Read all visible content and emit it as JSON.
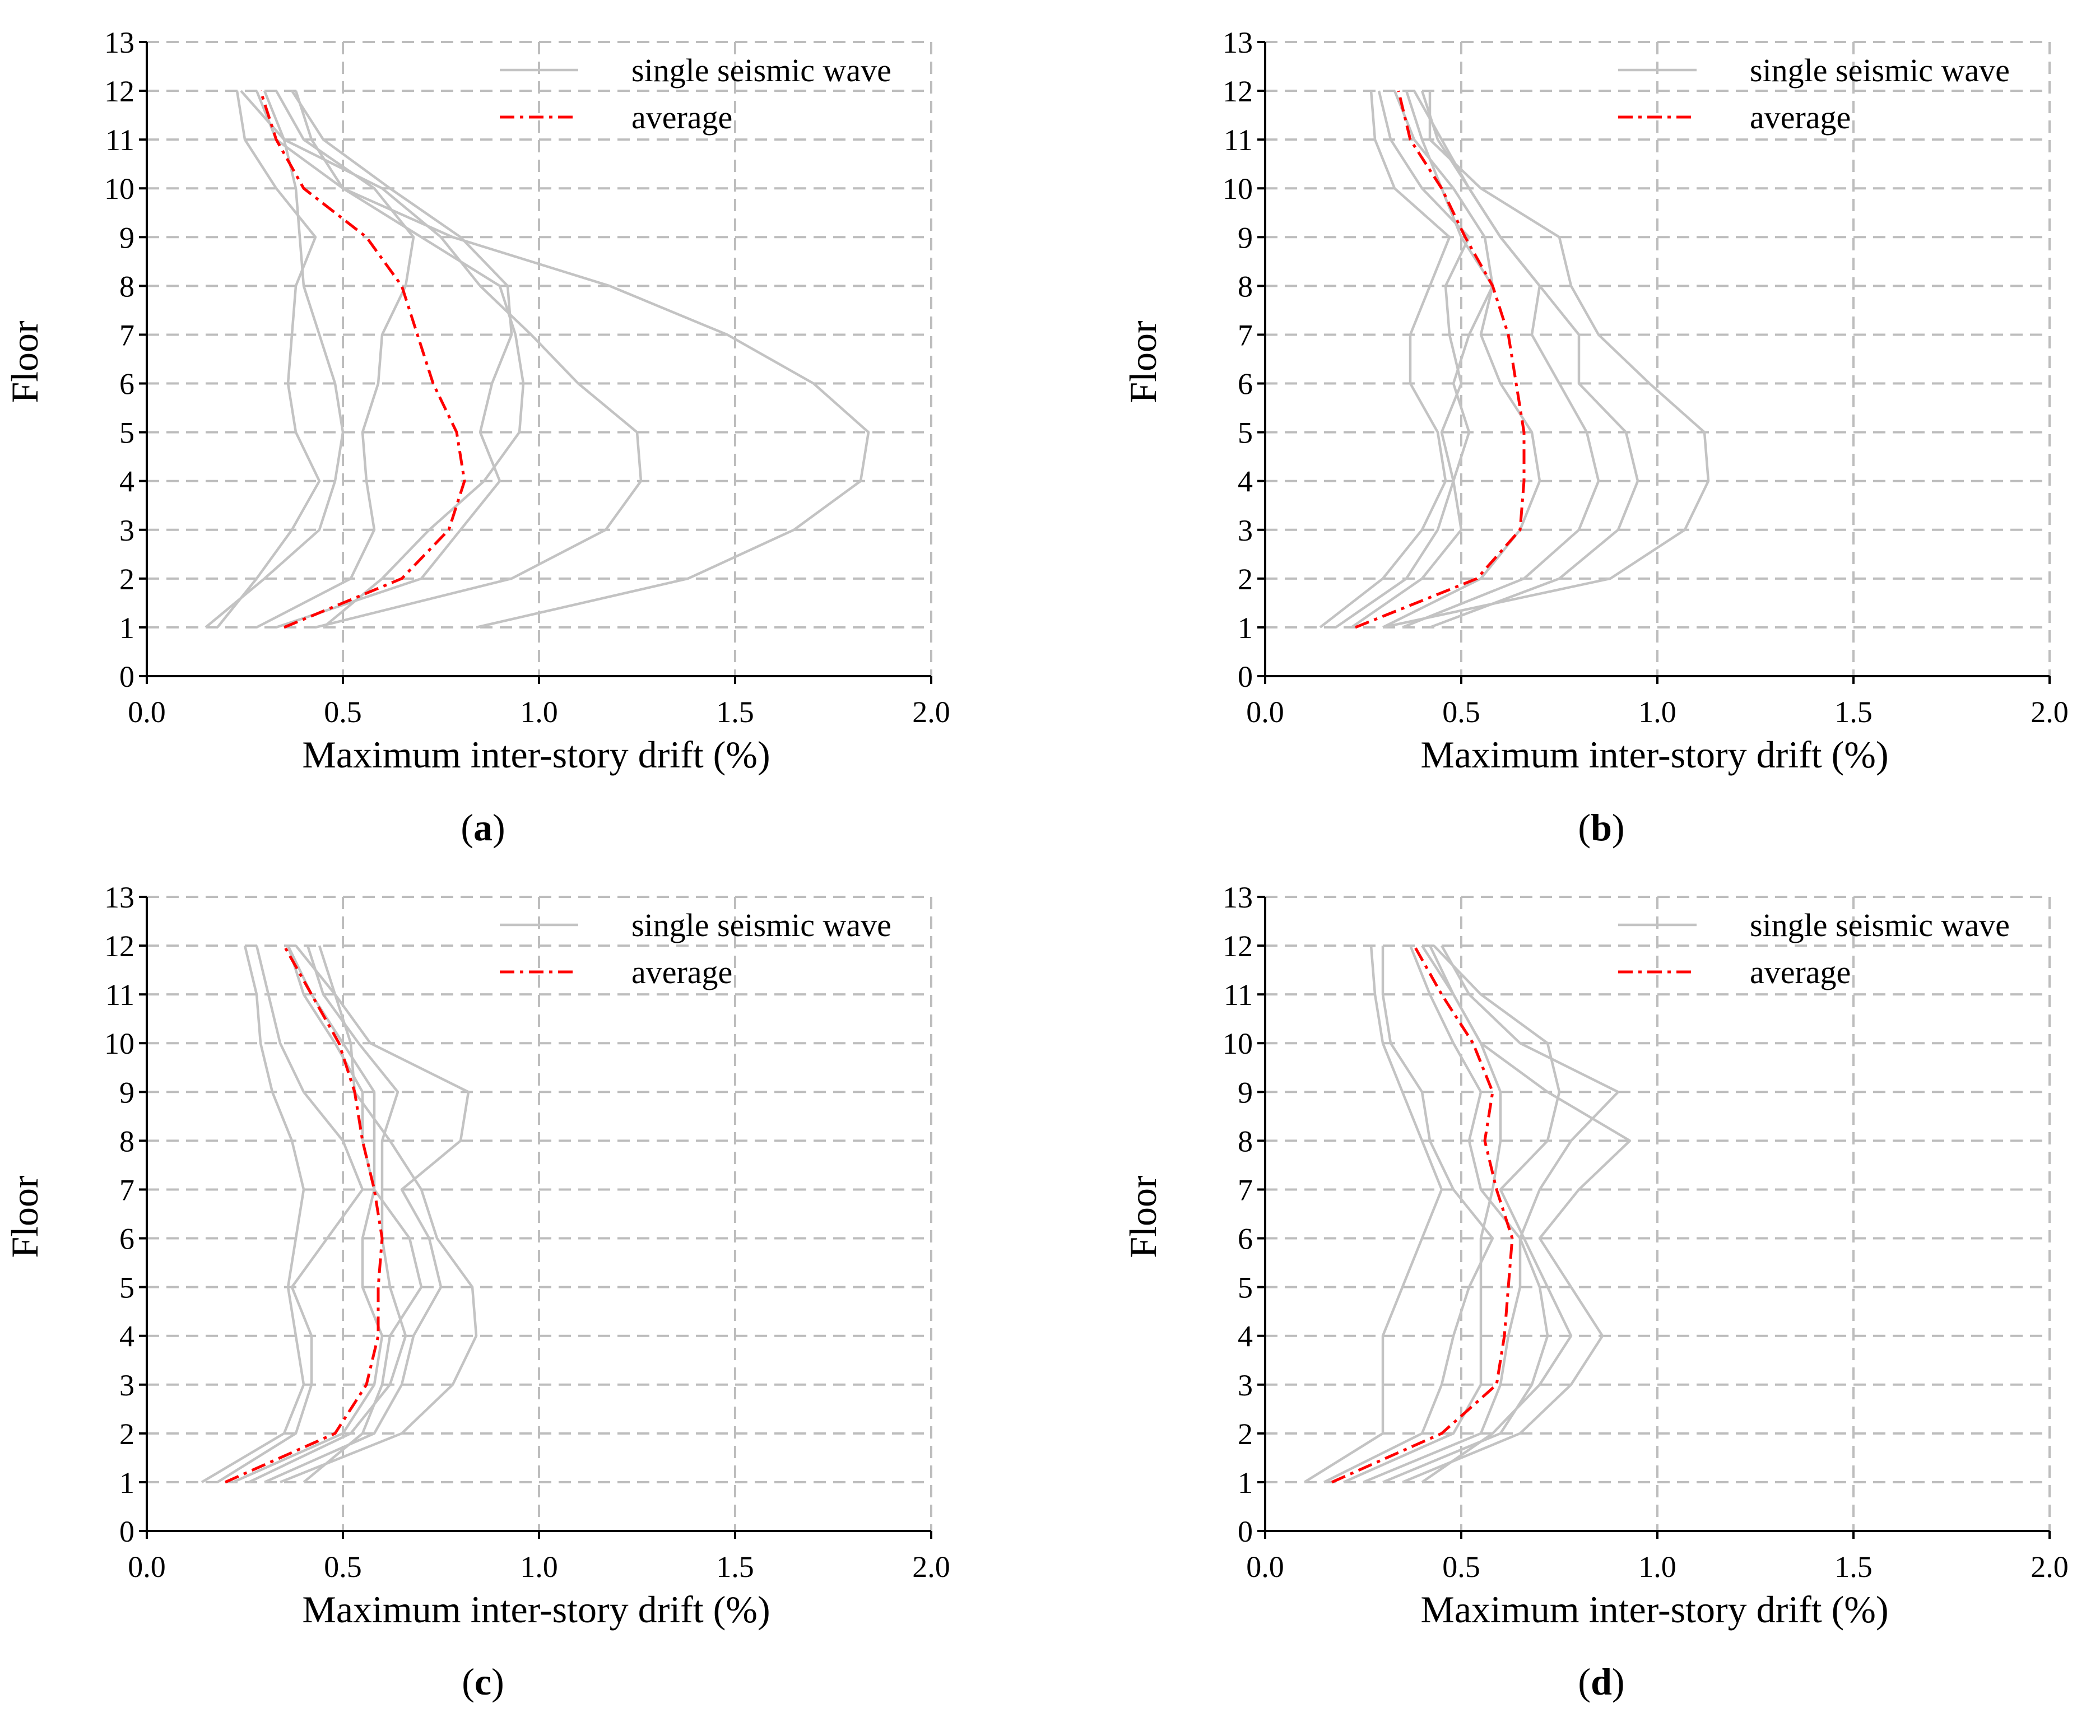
{
  "figure": {
    "style": {
      "wave_color": "#c3c3c3",
      "average_color": "#ff0000",
      "grid_color": "#bdbdbd",
      "axis_color": "#000000"
    }
  },
  "chart_data": [
    {
      "panel": "a",
      "caption_letter": "a",
      "type": "line",
      "xlabel": "Maximum inter-story drift (%)",
      "ylabel": "Floor",
      "xlim": [
        0.0,
        2.0
      ],
      "ylim": [
        0,
        13
      ],
      "xticks": [
        0.0,
        0.5,
        1.0,
        1.5,
        2.0
      ],
      "xtick_labels": [
        "0.0",
        "0.5",
        "1.0",
        "1.5",
        "2.0"
      ],
      "yticks": [
        0,
        1,
        2,
        3,
        4,
        5,
        6,
        7,
        8,
        9,
        10,
        11,
        12,
        13
      ],
      "ytick_labels": [
        "0",
        "1",
        "2",
        "3",
        "4",
        "5",
        "6",
        "7",
        "8",
        "9",
        "10",
        "11",
        "12",
        "13"
      ],
      "legend": {
        "position": "top-right",
        "entries": [
          "single seismic wave",
          "average"
        ]
      },
      "floors": [
        1,
        2,
        3,
        4,
        5,
        6,
        7,
        8,
        9,
        10,
        11,
        12
      ],
      "series": [
        {
          "name": "single seismic wave",
          "values": [
            0.15,
            0.3,
            0.44,
            0.48,
            0.5,
            0.48,
            0.44,
            0.4,
            0.39,
            0.38,
            0.35,
            0.3
          ]
        },
        {
          "name": "single seismic wave",
          "values": [
            0.18,
            0.28,
            0.37,
            0.44,
            0.38,
            0.36,
            0.37,
            0.38,
            0.43,
            0.33,
            0.25,
            0.23
          ]
        },
        {
          "name": "single seismic wave",
          "values": [
            0.28,
            0.52,
            0.58,
            0.56,
            0.55,
            0.59,
            0.6,
            0.66,
            0.68,
            0.58,
            0.4,
            0.33
          ]
        },
        {
          "name": "single seismic wave",
          "values": [
            0.33,
            0.7,
            0.8,
            0.9,
            0.85,
            0.88,
            0.93,
            0.92,
            0.8,
            0.62,
            0.45,
            0.37
          ]
        },
        {
          "name": "single seismic wave",
          "values": [
            0.43,
            0.93,
            1.17,
            1.26,
            1.25,
            1.1,
            0.98,
            0.85,
            0.75,
            0.6,
            0.35,
            0.24
          ]
        },
        {
          "name": "single seismic wave",
          "values": [
            0.84,
            1.38,
            1.65,
            1.82,
            1.84,
            1.7,
            1.48,
            1.18,
            0.78,
            0.5,
            0.33,
            0.28
          ]
        },
        {
          "name": "single seismic wave",
          "values": [
            0.45,
            0.6,
            0.72,
            0.86,
            0.95,
            0.96,
            0.94,
            0.9,
            0.7,
            0.5,
            0.42,
            0.38
          ]
        }
      ],
      "average": {
        "name": "average",
        "values": [
          0.35,
          0.65,
          0.77,
          0.81,
          0.79,
          0.73,
          0.69,
          0.65,
          0.56,
          0.4,
          0.33,
          0.29
        ]
      }
    },
    {
      "panel": "b",
      "caption_letter": "b",
      "type": "line",
      "xlabel": "Maximum inter-story drift (%)",
      "ylabel": "Floor",
      "xlim": [
        0.0,
        2.0
      ],
      "ylim": [
        0,
        13
      ],
      "xticks": [
        0.0,
        0.5,
        1.0,
        1.5,
        2.0
      ],
      "xtick_labels": [
        "0.0",
        "0.5",
        "1.0",
        "1.5",
        "2.0"
      ],
      "yticks": [
        0,
        1,
        2,
        3,
        4,
        5,
        6,
        7,
        8,
        9,
        10,
        11,
        12,
        13
      ],
      "ytick_labels": [
        "0",
        "1",
        "2",
        "3",
        "4",
        "5",
        "6",
        "7",
        "8",
        "9",
        "10",
        "11",
        "12",
        "13"
      ],
      "legend": {
        "position": "top-right",
        "entries": [
          "single seismic wave",
          "average"
        ]
      },
      "floors": [
        1,
        2,
        3,
        4,
        5,
        6,
        7,
        8,
        9,
        10,
        11,
        12
      ],
      "series": [
        {
          "name": "single seismic wave",
          "values": [
            0.14,
            0.3,
            0.4,
            0.46,
            0.44,
            0.37,
            0.37,
            0.42,
            0.47,
            0.33,
            0.28,
            0.27
          ]
        },
        {
          "name": "single seismic wave",
          "values": [
            0.18,
            0.36,
            0.44,
            0.48,
            0.45,
            0.5,
            0.47,
            0.46,
            0.52,
            0.4,
            0.32,
            0.29
          ]
        },
        {
          "name": "single seismic wave",
          "values": [
            0.22,
            0.4,
            0.5,
            0.48,
            0.52,
            0.48,
            0.52,
            0.58,
            0.56,
            0.48,
            0.38,
            0.33
          ]
        },
        {
          "name": "single seismic wave",
          "values": [
            0.3,
            0.55,
            0.65,
            0.7,
            0.68,
            0.6,
            0.55,
            0.58,
            0.5,
            0.45,
            0.4,
            0.36
          ]
        },
        {
          "name": "single seismic wave",
          "values": [
            0.35,
            0.66,
            0.8,
            0.85,
            0.82,
            0.75,
            0.68,
            0.7,
            0.6,
            0.52,
            0.44,
            0.4
          ]
        },
        {
          "name": "single seismic wave",
          "values": [
            0.42,
            0.75,
            0.9,
            0.95,
            0.92,
            0.8,
            0.8,
            0.7,
            0.6,
            0.52,
            0.45,
            0.38
          ]
        },
        {
          "name": "single seismic wave",
          "values": [
            0.3,
            0.88,
            1.07,
            1.13,
            1.12,
            0.98,
            0.85,
            0.78,
            0.75,
            0.55,
            0.42,
            0.42
          ]
        }
      ],
      "average": {
        "name": "average",
        "values": [
          0.23,
          0.54,
          0.65,
          0.66,
          0.66,
          0.64,
          0.62,
          0.58,
          0.51,
          0.45,
          0.37,
          0.34
        ]
      }
    },
    {
      "panel": "c",
      "caption_letter": "c",
      "type": "line",
      "xlabel": "Maximum inter-story drift (%)",
      "ylabel": "Floor",
      "xlim": [
        0.0,
        2.0
      ],
      "ylim": [
        0,
        13
      ],
      "xticks": [
        0.0,
        0.5,
        1.0,
        1.5,
        2.0
      ],
      "xtick_labels": [
        "0.0",
        "0.5",
        "1.0",
        "1.5",
        "2.0"
      ],
      "yticks": [
        0,
        1,
        2,
        3,
        4,
        5,
        6,
        7,
        8,
        9,
        10,
        11,
        12,
        13
      ],
      "ytick_labels": [
        "0",
        "1",
        "2",
        "3",
        "4",
        "5",
        "6",
        "7",
        "8",
        "9",
        "10",
        "11",
        "12",
        "13"
      ],
      "legend": {
        "position": "top-right",
        "entries": [
          "single seismic wave",
          "average"
        ]
      },
      "floors": [
        1,
        2,
        3,
        4,
        5,
        6,
        7,
        8,
        9,
        10,
        11,
        12
      ],
      "series": [
        {
          "name": "single seismic wave",
          "values": [
            0.14,
            0.35,
            0.4,
            0.38,
            0.36,
            0.38,
            0.4,
            0.37,
            0.32,
            0.29,
            0.28,
            0.25
          ]
        },
        {
          "name": "single seismic wave",
          "values": [
            0.18,
            0.38,
            0.42,
            0.42,
            0.37,
            0.46,
            0.55,
            0.5,
            0.4,
            0.34,
            0.31,
            0.28
          ]
        },
        {
          "name": "single seismic wave",
          "values": [
            0.22,
            0.5,
            0.58,
            0.6,
            0.55,
            0.55,
            0.58,
            0.55,
            0.55,
            0.48,
            0.4,
            0.36
          ]
        },
        {
          "name": "single seismic wave",
          "values": [
            0.26,
            0.52,
            0.62,
            0.66,
            0.62,
            0.6,
            0.6,
            0.6,
            0.64,
            0.54,
            0.45,
            0.41
          ]
        },
        {
          "name": "single seismic wave",
          "values": [
            0.3,
            0.58,
            0.65,
            0.68,
            0.75,
            0.72,
            0.65,
            0.8,
            0.82,
            0.57,
            0.48,
            0.44
          ]
        },
        {
          "name": "single seismic wave",
          "values": [
            0.34,
            0.65,
            0.78,
            0.84,
            0.83,
            0.74,
            0.7,
            0.62,
            0.53,
            0.52,
            0.48,
            0.38
          ]
        },
        {
          "name": "single seismic wave",
          "values": [
            0.4,
            0.55,
            0.6,
            0.62,
            0.7,
            0.67,
            0.58,
            0.58,
            0.58,
            0.5,
            0.42,
            0.36
          ]
        }
      ],
      "average": {
        "name": "average",
        "values": [
          0.2,
          0.48,
          0.56,
          0.59,
          0.59,
          0.6,
          0.58,
          0.55,
          0.53,
          0.49,
          0.42,
          0.35
        ]
      }
    },
    {
      "panel": "d",
      "caption_letter": "d",
      "type": "line",
      "xlabel": "Maximum inter-story drift (%)",
      "ylabel": "Floor",
      "xlim": [
        0.0,
        2.0
      ],
      "ylim": [
        0,
        13
      ],
      "xticks": [
        0.0,
        0.5,
        1.0,
        1.5,
        2.0
      ],
      "xtick_labels": [
        "0.0",
        "0.5",
        "1.0",
        "1.5",
        "2.0"
      ],
      "yticks": [
        0,
        1,
        2,
        3,
        4,
        5,
        6,
        7,
        8,
        9,
        10,
        11,
        12,
        13
      ],
      "ytick_labels": [
        "0",
        "1",
        "2",
        "3",
        "4",
        "5",
        "6",
        "7",
        "8",
        "9",
        "10",
        "11",
        "12",
        "13"
      ],
      "legend": {
        "position": "top-right",
        "entries": [
          "single seismic wave",
          "average"
        ]
      },
      "floors": [
        1,
        2,
        3,
        4,
        5,
        6,
        7,
        8,
        9,
        10,
        11,
        12
      ],
      "series": [
        {
          "name": "single seismic wave",
          "values": [
            0.1,
            0.3,
            0.3,
            0.3,
            0.35,
            0.4,
            0.45,
            0.4,
            0.35,
            0.3,
            0.28,
            0.27
          ]
        },
        {
          "name": "single seismic wave",
          "values": [
            0.15,
            0.4,
            0.45,
            0.48,
            0.52,
            0.58,
            0.48,
            0.42,
            0.4,
            0.32,
            0.3,
            0.3
          ]
        },
        {
          "name": "single seismic wave",
          "values": [
            0.2,
            0.48,
            0.55,
            0.55,
            0.55,
            0.55,
            0.58,
            0.6,
            0.6,
            0.55,
            0.48,
            0.4
          ]
        },
        {
          "name": "single seismic wave",
          "values": [
            0.25,
            0.55,
            0.6,
            0.62,
            0.65,
            0.65,
            0.55,
            0.52,
            0.55,
            0.48,
            0.42,
            0.37
          ]
        },
        {
          "name": "single seismic wave",
          "values": [
            0.3,
            0.6,
            0.68,
            0.72,
            0.7,
            0.65,
            0.7,
            0.78,
            0.9,
            0.65,
            0.52,
            0.45
          ]
        },
        {
          "name": "single seismic wave",
          "values": [
            0.35,
            0.65,
            0.78,
            0.86,
            0.78,
            0.7,
            0.8,
            0.93,
            0.72,
            0.55,
            0.48,
            0.42
          ]
        },
        {
          "name": "single seismic wave",
          "values": [
            0.4,
            0.58,
            0.7,
            0.78,
            0.72,
            0.66,
            0.6,
            0.72,
            0.75,
            0.72,
            0.55,
            0.43
          ]
        }
      ],
      "average": {
        "name": "average",
        "values": [
          0.17,
          0.45,
          0.59,
          0.61,
          0.62,
          0.63,
          0.59,
          0.56,
          0.58,
          0.53,
          0.45,
          0.38
        ]
      }
    }
  ]
}
